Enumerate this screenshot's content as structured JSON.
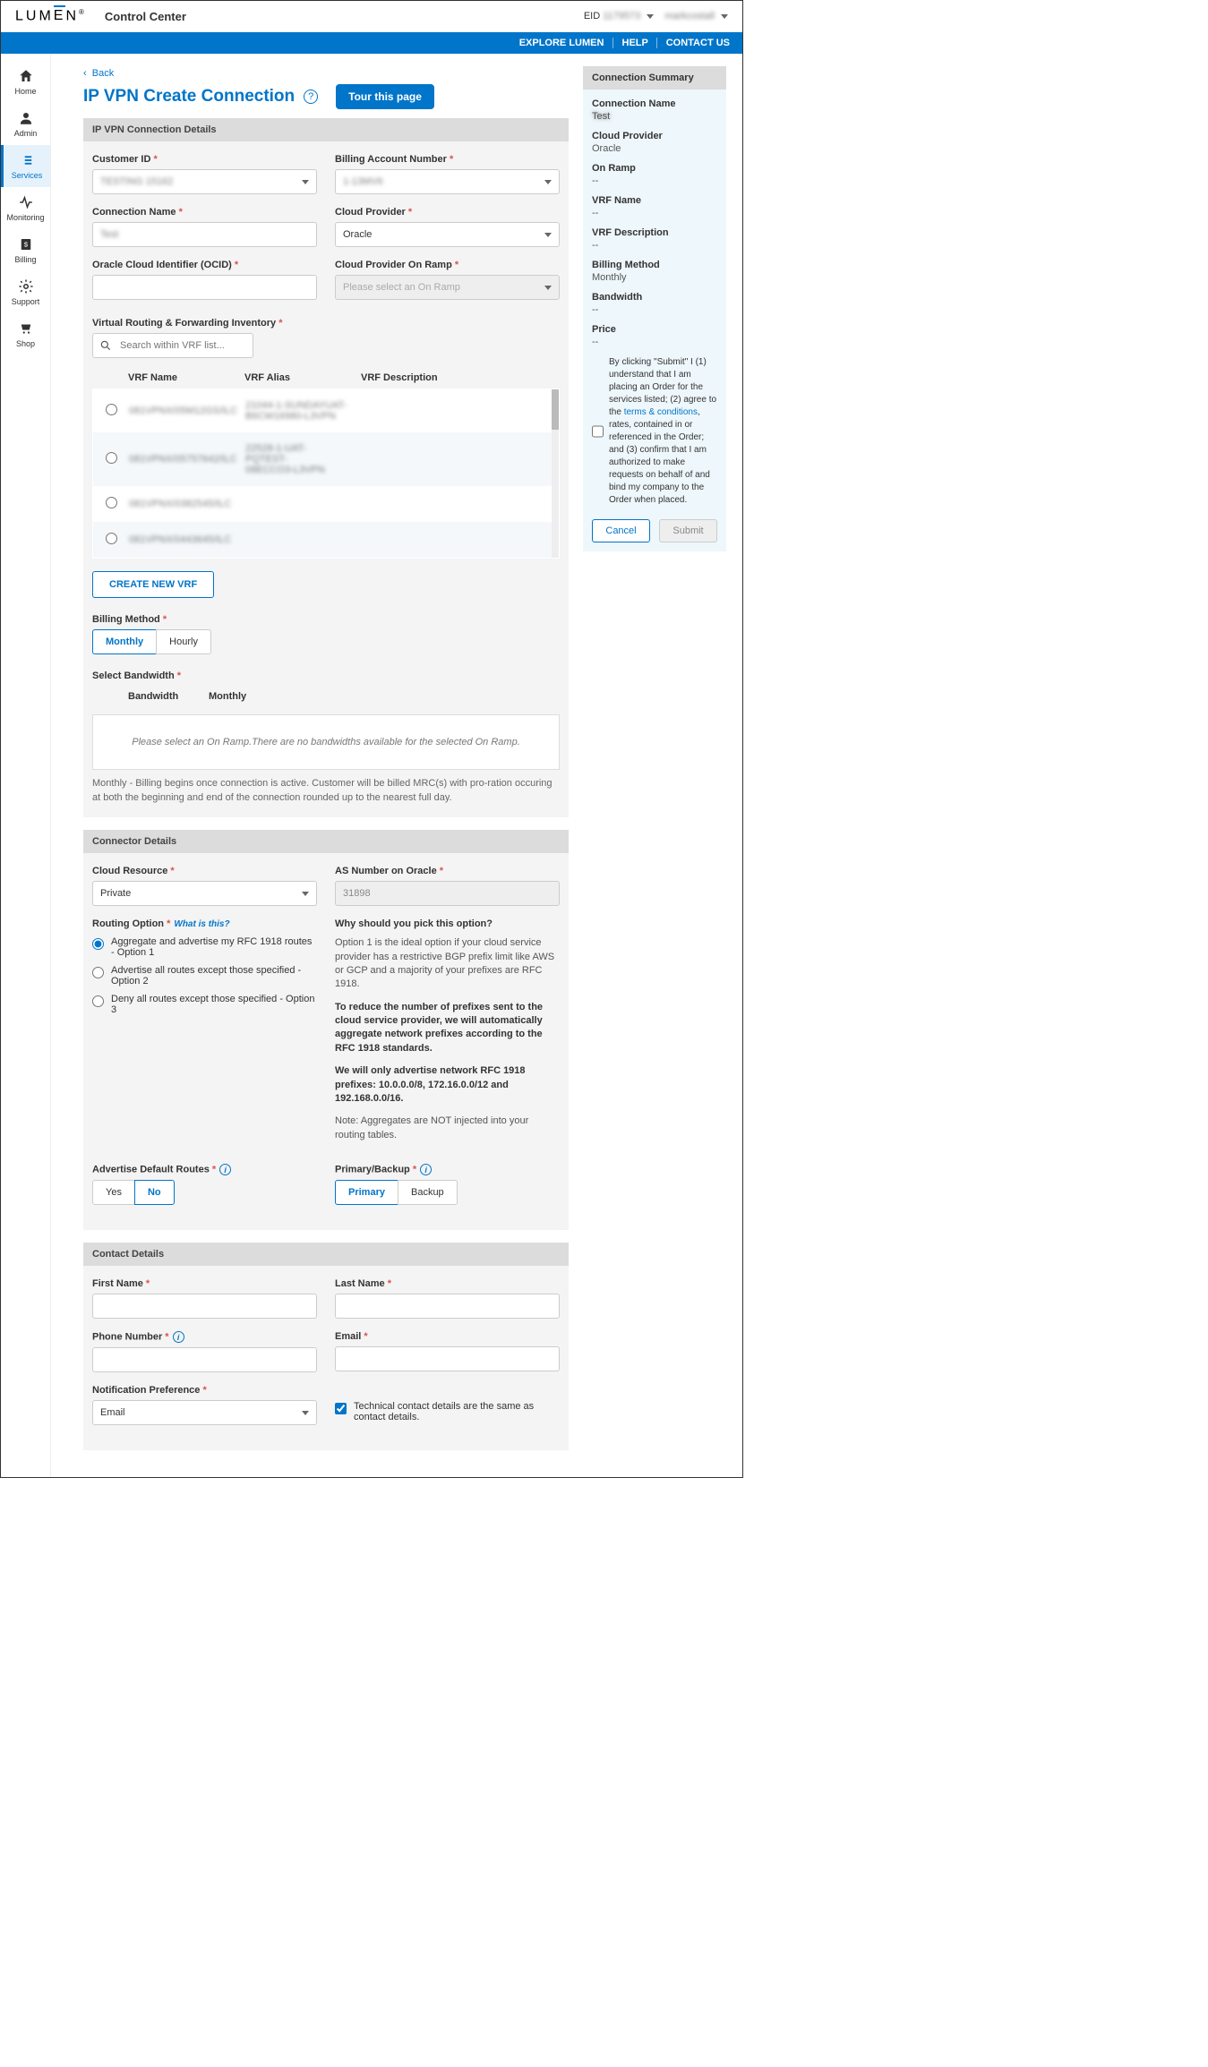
{
  "header": {
    "logo_text": "LUMEN",
    "title": "Control Center",
    "eid_label": "EID",
    "eid_value": "1179573",
    "user": "markcostall"
  },
  "blueBar": {
    "explore": "EXPLORE LUMEN",
    "help": "HELP",
    "contact": "CONTACT US"
  },
  "sidebar": {
    "items": [
      {
        "label": "Home"
      },
      {
        "label": "Admin"
      },
      {
        "label": "Services"
      },
      {
        "label": "Monitoring"
      },
      {
        "label": "Billing"
      },
      {
        "label": "Support"
      },
      {
        "label": "Shop"
      }
    ]
  },
  "page": {
    "back": "Back",
    "title": "IP VPN Create Connection",
    "tour": "Tour this page"
  },
  "details": {
    "header": "IP VPN Connection Details",
    "customerId_label": "Customer ID",
    "customerId_value": "TESTING 15162",
    "ban_label": "Billing Account Number",
    "ban_value": "1-13MV6",
    "connName_label": "Connection Name",
    "connName_value": "Test",
    "cloudProvider_label": "Cloud Provider",
    "cloudProvider_value": "Oracle",
    "ocid_label": "Oracle Cloud Identifier (OCID)",
    "ocid_value": "",
    "onramp_label": "Cloud Provider On Ramp",
    "onramp_placeholder": "Please select an On Ramp",
    "vrf_label": "Virtual Routing & Forwarding Inventory",
    "vrf_search_placeholder": "Search within VRF list...",
    "vrf_cols": {
      "name": "VRF Name",
      "alias": "VRF Alias",
      "desc": "VRF Description"
    },
    "vrf_rows": [
      {
        "name": "081VPNX/05M12GS/ILC",
        "alias": "21044-1-SUNDAYUAT-\nB6CW16980-L3VPN",
        "desc": ""
      },
      {
        "name": "081VPNX/05757642/ILC",
        "alias": "22528-1-UAT-\nPQTEST-\n08ECCO3-L3VPN",
        "desc": ""
      },
      {
        "name": "081VPNX/0382545/ILC",
        "alias": "",
        "desc": ""
      },
      {
        "name": "081VPNX/0443645/ILC",
        "alias": "",
        "desc": ""
      }
    ],
    "create_vrf": "CREATE NEW VRF",
    "billing_label": "Billing Method",
    "billing_opts": {
      "monthly": "Monthly",
      "hourly": "Hourly"
    },
    "bandwidth_label": "Select Bandwidth",
    "bw_cols": {
      "bw": "Bandwidth",
      "monthly": "Monthly"
    },
    "bw_empty": "Please select an On Ramp.There are no bandwidths available for the selected On Ramp.",
    "billing_note": "Monthly - Billing begins once connection is active. Customer will be billed MRC(s) with pro-ration occuring at both the beginning and end of the connection rounded up to the nearest full day."
  },
  "connector": {
    "header": "Connector Details",
    "cloudResource_label": "Cloud Resource",
    "cloudResource_value": "Private",
    "asn_label": "AS Number on Oracle",
    "asn_value": "31898",
    "routing_label": "Routing Option",
    "whatis": "What is this?",
    "opts": [
      "Aggregate and advertise my RFC 1918 routes - Option 1",
      "Advertise all routes except those specified - Option 2",
      "Deny all routes except those specified - Option 3"
    ],
    "why_title": "Why should you pick this option?",
    "why_p1": "Option 1 is the ideal option if your cloud service provider has a restrictive BGP prefix limit like AWS or GCP and a majority of your prefixes are RFC 1918.",
    "why_p2": "To reduce the number of prefixes sent to the cloud service provider, we will automatically aggregate network prefixes according to the RFC 1918 standards.",
    "why_p3": "We will only advertise network RFC 1918 prefixes: 10.0.0.0/8, 172.16.0.0/12 and 192.168.0.0/16.",
    "why_note": "Note: Aggregates are NOT injected into your routing tables.",
    "adv_label": "Advertise Default Routes",
    "adv_opts": {
      "yes": "Yes",
      "no": "No"
    },
    "pb_label": "Primary/Backup",
    "pb_opts": {
      "primary": "Primary",
      "backup": "Backup"
    }
  },
  "contact": {
    "header": "Contact Details",
    "first": "First Name",
    "last": "Last Name",
    "phone": "Phone Number",
    "email": "Email",
    "notif_label": "Notification Preference",
    "notif_value": "Email",
    "same_check": "Technical contact details are the same as contact details."
  },
  "summary": {
    "header": "Connection Summary",
    "connName_label": "Connection Name",
    "connName_value": "Test",
    "cp_label": "Cloud Provider",
    "cp_value": "Oracle",
    "onramp_label": "On Ramp",
    "onramp_value": "--",
    "vrfname_label": "VRF Name",
    "vrfname_value": "--",
    "vrfdesc_label": "VRF Description",
    "vrfdesc_value": "--",
    "billing_label": "Billing Method",
    "billing_value": "Monthly",
    "bw_label": "Bandwidth",
    "bw_value": "--",
    "price_label": "Price",
    "price_value": "--",
    "terms_pre": "By clicking \"Submit\" I (1) understand that I am placing an Order for the services listed; (2) agree to the ",
    "terms_link": "terms & conditions",
    "terms_post": ", rates, contained in or referenced in the Order; and (3) confirm that I am authorized to make requests on behalf of and bind my company to the Order when placed.",
    "cancel": "Cancel",
    "submit": "Submit"
  }
}
